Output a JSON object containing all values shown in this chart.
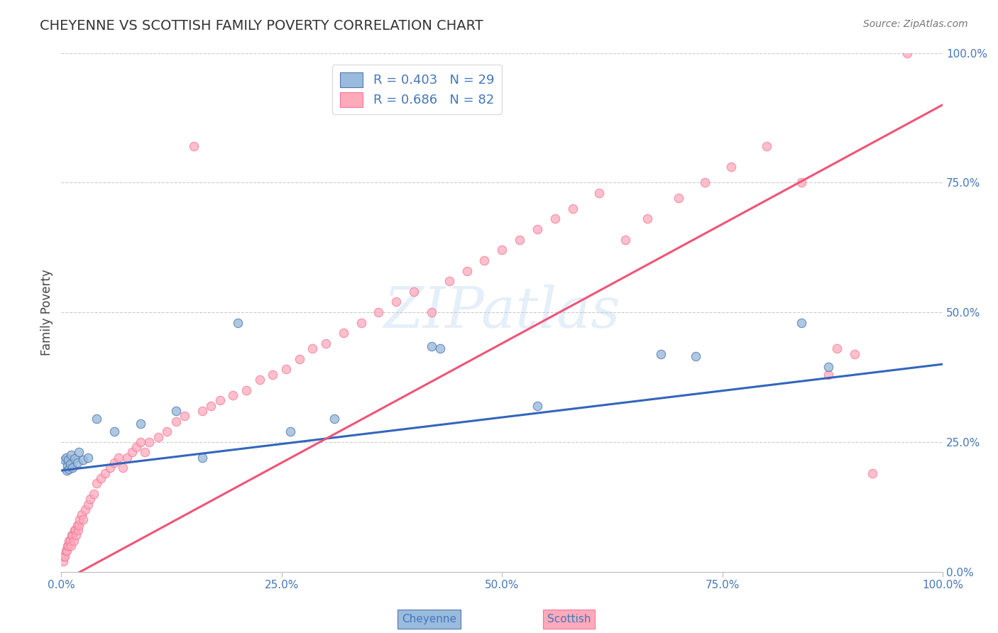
{
  "title": "CHEYENNE VS SCOTTISH FAMILY POVERTY CORRELATION CHART",
  "source": "Source: ZipAtlas.com",
  "ylabel": "Family Poverty",
  "xlim": [
    0,
    1
  ],
  "ylim": [
    0,
    1
  ],
  "xtick_positions": [
    0.0,
    0.25,
    0.5,
    0.75,
    1.0
  ],
  "xtick_labels": [
    "0.0%",
    "25.0%",
    "50.0%",
    "75.0%",
    "100.0%"
  ],
  "ytick_positions": [
    0.0,
    0.25,
    0.5,
    0.75,
    1.0
  ],
  "ytick_labels_right": [
    "0.0%",
    "25.0%",
    "50.0%",
    "75.0%",
    "100.0%"
  ],
  "watermark": "ZIPatlas",
  "cheyenne_color": "#99BBDD",
  "scottish_color": "#FFAABB",
  "cheyenne_edge_color": "#5577AA",
  "scottish_edge_color": "#EE7799",
  "cheyenne_line_color": "#3366BB",
  "scottish_line_color": "#EE5577",
  "cheyenne_R": 0.403,
  "cheyenne_N": 29,
  "scottish_R": 0.686,
  "scottish_N": 82,
  "background_color": "#FFFFFF",
  "grid_color": "#CCCCCC",
  "title_color": "#333333",
  "label_color": "#4477BB",
  "cheyenne_intercept": 0.195,
  "cheyenne_slope": 0.205,
  "scottish_intercept": -0.02,
  "scottish_slope": 0.92,
  "cheyenne_x": [
    0.004,
    0.005,
    0.006,
    0.007,
    0.008,
    0.009,
    0.01,
    0.011,
    0.013,
    0.015,
    0.018,
    0.02,
    0.025,
    0.03,
    0.04,
    0.06,
    0.09,
    0.13,
    0.16,
    0.2,
    0.26,
    0.31,
    0.42,
    0.43,
    0.54,
    0.68,
    0.72,
    0.84,
    0.87
  ],
  "cheyenne_y": [
    0.215,
    0.22,
    0.195,
    0.205,
    0.215,
    0.198,
    0.208,
    0.225,
    0.2,
    0.218,
    0.21,
    0.23,
    0.215,
    0.22,
    0.295,
    0.27,
    0.285,
    0.31,
    0.22,
    0.48,
    0.27,
    0.295,
    0.435,
    0.43,
    0.32,
    0.42,
    0.415,
    0.48,
    0.395
  ],
  "scottish_x": [
    0.002,
    0.003,
    0.004,
    0.005,
    0.006,
    0.007,
    0.008,
    0.009,
    0.01,
    0.011,
    0.012,
    0.013,
    0.014,
    0.015,
    0.016,
    0.017,
    0.018,
    0.019,
    0.02,
    0.021,
    0.023,
    0.025,
    0.027,
    0.03,
    0.033,
    0.037,
    0.04,
    0.045,
    0.05,
    0.055,
    0.06,
    0.065,
    0.07,
    0.075,
    0.08,
    0.085,
    0.09,
    0.095,
    0.1,
    0.11,
    0.12,
    0.13,
    0.14,
    0.15,
    0.16,
    0.17,
    0.18,
    0.195,
    0.21,
    0.225,
    0.24,
    0.255,
    0.27,
    0.285,
    0.3,
    0.32,
    0.34,
    0.36,
    0.38,
    0.4,
    0.42,
    0.44,
    0.46,
    0.48,
    0.5,
    0.52,
    0.54,
    0.56,
    0.58,
    0.61,
    0.64,
    0.665,
    0.7,
    0.73,
    0.76,
    0.8,
    0.84,
    0.87,
    0.88,
    0.9,
    0.92,
    0.96
  ],
  "scottish_y": [
    0.02,
    0.03,
    0.03,
    0.04,
    0.04,
    0.05,
    0.05,
    0.06,
    0.06,
    0.05,
    0.07,
    0.07,
    0.06,
    0.08,
    0.08,
    0.07,
    0.09,
    0.08,
    0.09,
    0.1,
    0.11,
    0.1,
    0.12,
    0.13,
    0.14,
    0.15,
    0.17,
    0.18,
    0.19,
    0.2,
    0.21,
    0.22,
    0.2,
    0.22,
    0.23,
    0.24,
    0.25,
    0.23,
    0.25,
    0.26,
    0.27,
    0.29,
    0.3,
    0.82,
    0.31,
    0.32,
    0.33,
    0.34,
    0.35,
    0.37,
    0.38,
    0.39,
    0.41,
    0.43,
    0.44,
    0.46,
    0.48,
    0.5,
    0.52,
    0.54,
    0.5,
    0.56,
    0.58,
    0.6,
    0.62,
    0.64,
    0.66,
    0.68,
    0.7,
    0.73,
    0.64,
    0.68,
    0.72,
    0.75,
    0.78,
    0.82,
    0.75,
    0.38,
    0.43,
    0.42,
    0.19,
    1.0
  ]
}
